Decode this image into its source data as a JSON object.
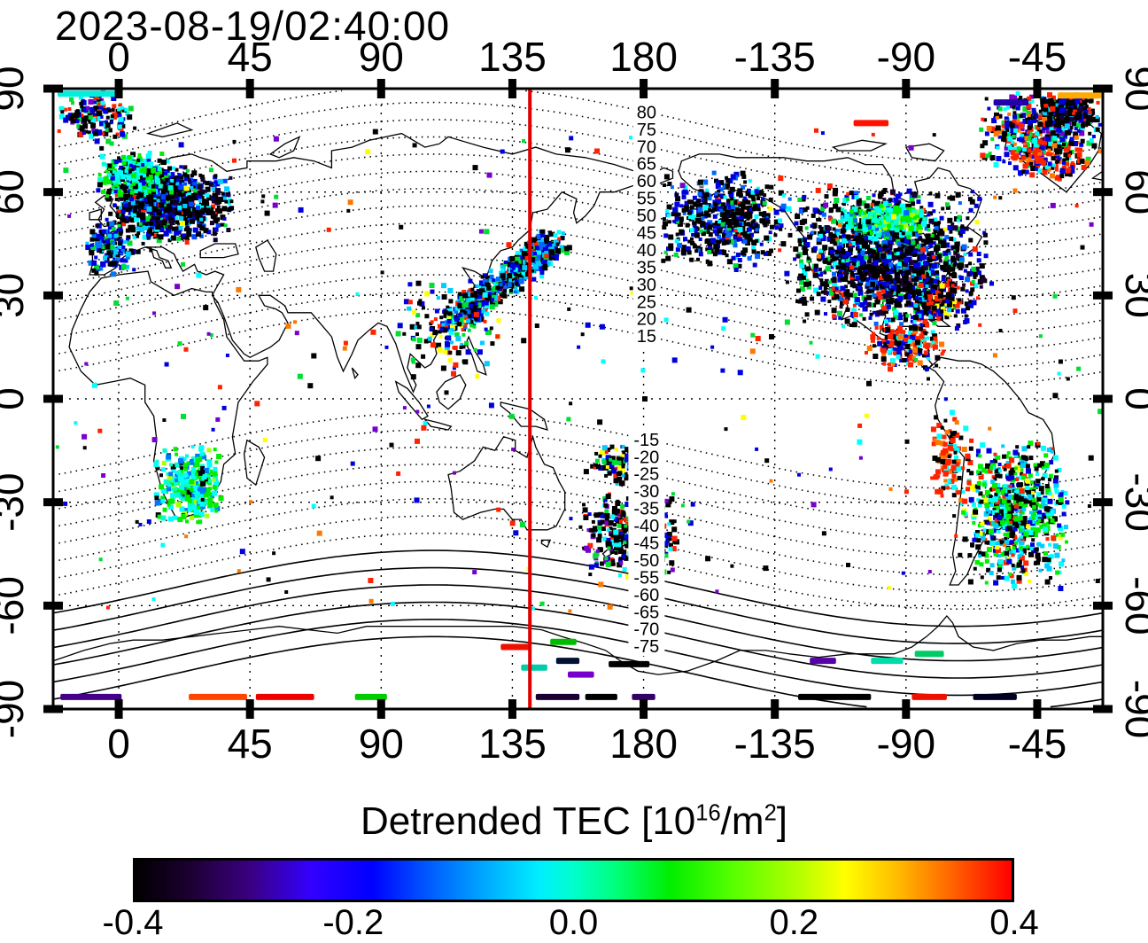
{
  "header": {
    "datetime": "2023-08-19/02:40:00"
  },
  "axes": {
    "lon_ticks": [
      {
        "label": "0",
        "lon": 0
      },
      {
        "label": "45",
        "lon": 45
      },
      {
        "label": "90",
        "lon": 90
      },
      {
        "label": "135",
        "lon": 135
      },
      {
        "label": "180",
        "lon": 180
      },
      {
        "label": "-135",
        "lon": 225
      },
      {
        "label": "-90",
        "lon": 270
      },
      {
        "label": "-45",
        "lon": 315
      }
    ],
    "lat_ticks": [
      {
        "label": "90",
        "lat": 90
      },
      {
        "label": "60",
        "lat": 60
      },
      {
        "label": "30",
        "lat": 30
      },
      {
        "label": "0",
        "lat": 0
      },
      {
        "label": "-30",
        "lat": -30
      },
      {
        "label": "-60",
        "lat": -60
      },
      {
        "label": "-90",
        "lat": -90
      }
    ]
  },
  "chart_data": {
    "type": "heatmap",
    "title": "Detrended TEC [10^16/m^2]",
    "datetime": "2023-08-19/02:40:00",
    "map": "equirectangular world map, longitude -22.5..337.5 E, latitude -90..90",
    "value_units": "10^16 electrons/m^2",
    "value_range": [
      -0.4,
      0.4
    ],
    "red_line_lon": 141,
    "contour_label_lon": 181,
    "contour_labels_north": [
      80,
      75,
      70,
      65,
      60,
      55,
      50,
      45,
      40,
      35,
      30,
      25,
      20,
      15
    ],
    "contour_labels_south": [
      -15,
      -20,
      -25,
      -30,
      -35,
      -40,
      -45,
      -50,
      -55,
      -60,
      -65,
      -70,
      -75
    ],
    "colorbar": {
      "label_prefix": "Detrended TEC  [10",
      "label_sup1": "16",
      "label_mid": "/m",
      "label_sup2": "2",
      "label_suffix": "]",
      "ticks": [
        "-0.4",
        "-0.2",
        "0.0",
        "0.2",
        "0.4"
      ],
      "tick_values": [
        -0.4,
        -0.2,
        0.0,
        0.2,
        0.4
      ],
      "gradient_stops": [
        [
          0,
          "#000000"
        ],
        [
          6,
          "#1c0030"
        ],
        [
          13,
          "#3a0080"
        ],
        [
          20,
          "#3300ff"
        ],
        [
          27,
          "#0000ff"
        ],
        [
          33,
          "#0055ff"
        ],
        [
          40,
          "#00aaff"
        ],
        [
          46,
          "#00eeff"
        ],
        [
          50,
          "#00ffcc"
        ],
        [
          55,
          "#00ff77"
        ],
        [
          61,
          "#00ee00"
        ],
        [
          68,
          "#55ff00"
        ],
        [
          75,
          "#aaff00"
        ],
        [
          81,
          "#ffff00"
        ],
        [
          87,
          "#ffbb00"
        ],
        [
          93,
          "#ff6600"
        ],
        [
          100,
          "#ff0000"
        ]
      ]
    },
    "clusters": [
      {
        "name": "europe-main",
        "lon": [
          -5,
          40
        ],
        "lat": [
          45,
          68
        ],
        "n": 850,
        "colors": [
          [
            "#000000",
            45
          ],
          [
            "#14002a",
            12
          ],
          [
            "#0000dd",
            15
          ],
          [
            "#0044ff",
            8
          ],
          [
            "#00ccff",
            7
          ],
          [
            "#00ffff",
            5
          ],
          [
            "#00dd33",
            5
          ],
          [
            "#ff2200",
            3
          ]
        ]
      },
      {
        "name": "scandinavia-streak",
        "lon": [
          -8,
          20
        ],
        "lat": [
          58,
          72
        ],
        "n": 240,
        "colors": [
          [
            "#00ee00",
            30
          ],
          [
            "#00ffff",
            25
          ],
          [
            "#00ffcc",
            15
          ],
          [
            "#000000",
            20
          ],
          [
            "#0000dd",
            10
          ]
        ]
      },
      {
        "name": "west-europe-sparse",
        "lon": [
          -12,
          6
        ],
        "lat": [
          36,
          52
        ],
        "n": 150,
        "colors": [
          [
            "#0000dd",
            30
          ],
          [
            "#0077ff",
            20
          ],
          [
            "#00ccff",
            15
          ],
          [
            "#000000",
            25
          ],
          [
            "#00dd33",
            10
          ]
        ]
      },
      {
        "name": "arctic-left",
        "lon": [
          -22,
          6
        ],
        "lat": [
          74,
          89
        ],
        "n": 170,
        "colors": [
          [
            "#000000",
            35
          ],
          [
            "#0000dd",
            20
          ],
          [
            "#00ffff",
            15
          ],
          [
            "#00dd33",
            10
          ],
          [
            "#ff2200",
            10
          ],
          [
            "#7700cc",
            10
          ]
        ]
      },
      {
        "name": "east-asia-japan",
        "lon": [
          114,
          150
        ],
        "lat": [
          22,
          46
        ],
        "n": 650,
        "diag": true,
        "jitter": [
          10,
          6
        ],
        "colors": [
          [
            "#000000",
            40
          ],
          [
            "#0000dd",
            18
          ],
          [
            "#0066ff",
            12
          ],
          [
            "#00ccff",
            10
          ],
          [
            "#00ffff",
            8
          ],
          [
            "#00dd33",
            8
          ],
          [
            "#ff2200",
            4
          ]
        ]
      },
      {
        "name": "se-asia-sparse",
        "lon": [
          95,
          132
        ],
        "lat": [
          4,
          36
        ],
        "n": 130,
        "colors": [
          [
            "#000000",
            30
          ],
          [
            "#0000dd",
            20
          ],
          [
            "#00ccff",
            15
          ],
          [
            "#00dd33",
            15
          ],
          [
            "#ff2200",
            10
          ],
          [
            "#ffff00",
            10
          ]
        ]
      },
      {
        "name": "bering-alaska",
        "lon": [
          183,
          233
        ],
        "lat": [
          38,
          66
        ],
        "n": 520,
        "colors": [
          [
            "#000000",
            50
          ],
          [
            "#0000dd",
            25
          ],
          [
            "#0066ff",
            10
          ],
          [
            "#00ffff",
            8
          ],
          [
            "#00dd33",
            4
          ],
          [
            "#ff2200",
            3
          ]
        ]
      },
      {
        "name": "north-america",
        "lon": [
          228,
          300
        ],
        "lat": [
          20,
          62
        ],
        "n": 1450,
        "colors": [
          [
            "#000000",
            48
          ],
          [
            "#1a0033",
            10
          ],
          [
            "#0000dd",
            18
          ],
          [
            "#0066ff",
            8
          ],
          [
            "#00ffff",
            6
          ],
          [
            "#00dd33",
            6
          ],
          [
            "#ff2200",
            4
          ]
        ]
      },
      {
        "name": "na-green-streak",
        "lon": [
          246,
          280
        ],
        "lat": [
          46,
          57
        ],
        "n": 280,
        "colors": [
          [
            "#00ee00",
            35
          ],
          [
            "#00ffcc",
            20
          ],
          [
            "#00ffff",
            20
          ],
          [
            "#aaff00",
            10
          ],
          [
            "#0066ff",
            10
          ],
          [
            "#000000",
            5
          ]
        ]
      },
      {
        "name": "mexico-caribbean",
        "lon": [
          255,
          285
        ],
        "lat": [
          8,
          24
        ],
        "n": 170,
        "colors": [
          [
            "#ff2200",
            35
          ],
          [
            "#ff7700",
            10
          ],
          [
            "#00ffff",
            15
          ],
          [
            "#0000dd",
            15
          ],
          [
            "#000000",
            25
          ]
        ]
      },
      {
        "name": "florida-atlantic",
        "lon": [
          270,
          290
        ],
        "lat": [
          22,
          36
        ],
        "n": 150,
        "colors": [
          [
            "#ff2200",
            25
          ],
          [
            "#000000",
            35
          ],
          [
            "#0000dd",
            20
          ],
          [
            "#00ccff",
            10
          ],
          [
            "#ffff00",
            10
          ]
        ]
      },
      {
        "name": "south-america",
        "lon": [
          288,
          326
        ],
        "lat": [
          -55,
          -12
        ],
        "n": 680,
        "colors": [
          [
            "#000000",
            25
          ],
          [
            "#00ee00",
            20
          ],
          [
            "#00ffff",
            18
          ],
          [
            "#00ccff",
            12
          ],
          [
            "#0000dd",
            10
          ],
          [
            "#ff2200",
            10
          ],
          [
            "#ffff00",
            5
          ]
        ]
      },
      {
        "name": "andes-red",
        "lon": [
          277,
          293
        ],
        "lat": [
          -32,
          -4
        ],
        "n": 100,
        "colors": [
          [
            "#ff2200",
            45
          ],
          [
            "#ff7700",
            15
          ],
          [
            "#000000",
            25
          ],
          [
            "#00ffff",
            15
          ]
        ]
      },
      {
        "name": "south-africa",
        "lon": [
          12,
          36
        ],
        "lat": [
          -37,
          -14
        ],
        "n": 330,
        "colors": [
          [
            "#00ee00",
            35
          ],
          [
            "#00ffcc",
            20
          ],
          [
            "#00ffff",
            20
          ],
          [
            "#0077ff",
            12
          ],
          [
            "#000000",
            8
          ],
          [
            "#aaff00",
            5
          ]
        ]
      },
      {
        "name": "nz-tasman",
        "lon": [
          158,
          192
        ],
        "lat": [
          -52,
          -27
        ],
        "n": 360,
        "colors": [
          [
            "#000000",
            45
          ],
          [
            "#0000dd",
            18
          ],
          [
            "#00dd33",
            12
          ],
          [
            "#00ffff",
            10
          ],
          [
            "#7700cc",
            8
          ],
          [
            "#ff2200",
            7
          ]
        ]
      },
      {
        "name": "coral-sea",
        "lon": [
          160,
          186
        ],
        "lat": [
          -26,
          -12
        ],
        "n": 110,
        "colors": [
          [
            "#000000",
            55
          ],
          [
            "#0000dd",
            15
          ],
          [
            "#00ccff",
            10
          ],
          [
            "#ffff00",
            8
          ],
          [
            "#ff2200",
            7
          ],
          [
            "#00dd33",
            5
          ]
        ]
      },
      {
        "name": "arctic-right",
        "lon": [
          294,
          337
        ],
        "lat": [
          66,
          89
        ],
        "n": 430,
        "colors": [
          [
            "#000000",
            28
          ],
          [
            "#0000dd",
            18
          ],
          [
            "#ff2200",
            15
          ],
          [
            "#00ffff",
            12
          ],
          [
            "#00dd33",
            10
          ],
          [
            "#ff7700",
            9
          ],
          [
            "#7700cc",
            8
          ]
        ]
      },
      {
        "name": "greenland-red",
        "lon": [
          305,
          334
        ],
        "lat": [
          63,
          76
        ],
        "n": 110,
        "colors": [
          [
            "#ff2200",
            40
          ],
          [
            "#ff7700",
            15
          ],
          [
            "#000000",
            20
          ],
          [
            "#0000dd",
            15
          ],
          [
            "#00ffff",
            10
          ]
        ]
      },
      {
        "name": "top-right-dark",
        "lon": [
          315,
          337
        ],
        "lat": [
          78,
          89
        ],
        "n": 200,
        "colors": [
          [
            "#000000",
            55
          ],
          [
            "#0000dd",
            20
          ],
          [
            "#1a0033",
            10
          ],
          [
            "#00ccff",
            8
          ],
          [
            "#ff2200",
            7
          ]
        ]
      },
      {
        "name": "global-sparse",
        "lon": [
          -22,
          337
        ],
        "lat": [
          -62,
          78
        ],
        "n": 300,
        "uniform": true,
        "colors": [
          [
            "#000000",
            25
          ],
          [
            "#0000dd",
            15
          ],
          [
            "#ff2200",
            12
          ],
          [
            "#00ffff",
            12
          ],
          [
            "#00dd33",
            12
          ],
          [
            "#ffff00",
            8
          ],
          [
            "#ff7700",
            8
          ],
          [
            "#7700cc",
            8
          ]
        ]
      }
    ],
    "tracks": [
      [
        -20,
        1,
        -86.5,
        "#440088"
      ],
      [
        24,
        44,
        -86.5,
        "#ff4400"
      ],
      [
        47,
        67,
        -86.5,
        "#ee0000"
      ],
      [
        81,
        92,
        -86.5,
        "#00cc00"
      ],
      [
        131,
        141,
        -72,
        "#ee1100"
      ],
      [
        138,
        147,
        -78,
        "#00ccaa"
      ],
      [
        143,
        158,
        -86.5,
        "#1a0033"
      ],
      [
        148,
        157,
        -70.5,
        "#00bb00"
      ],
      [
        150,
        158,
        -76,
        "#001133"
      ],
      [
        154,
        163,
        -80,
        "#7700cc"
      ],
      [
        160,
        171,
        -86.5,
        "#000000"
      ],
      [
        168,
        182,
        -77,
        "#000000"
      ],
      [
        176,
        184,
        -86.5,
        "#330066"
      ],
      [
        233,
        258,
        -86.5,
        "#000000"
      ],
      [
        237,
        246,
        -76,
        "#5500aa"
      ],
      [
        258,
        269,
        -76,
        "#00ddaa"
      ],
      [
        273,
        283,
        -74,
        "#00cc66"
      ],
      [
        272,
        284,
        -86.5,
        "#ee1100"
      ],
      [
        293,
        308,
        -86.5,
        "#000022"
      ],
      [
        -21,
        0,
        88.5,
        "#00eedd"
      ],
      [
        252,
        264,
        80,
        "#ff1100"
      ],
      [
        322,
        337,
        88,
        "#ffaa00"
      ],
      [
        300,
        312,
        86,
        "#2200aa"
      ]
    ]
  }
}
